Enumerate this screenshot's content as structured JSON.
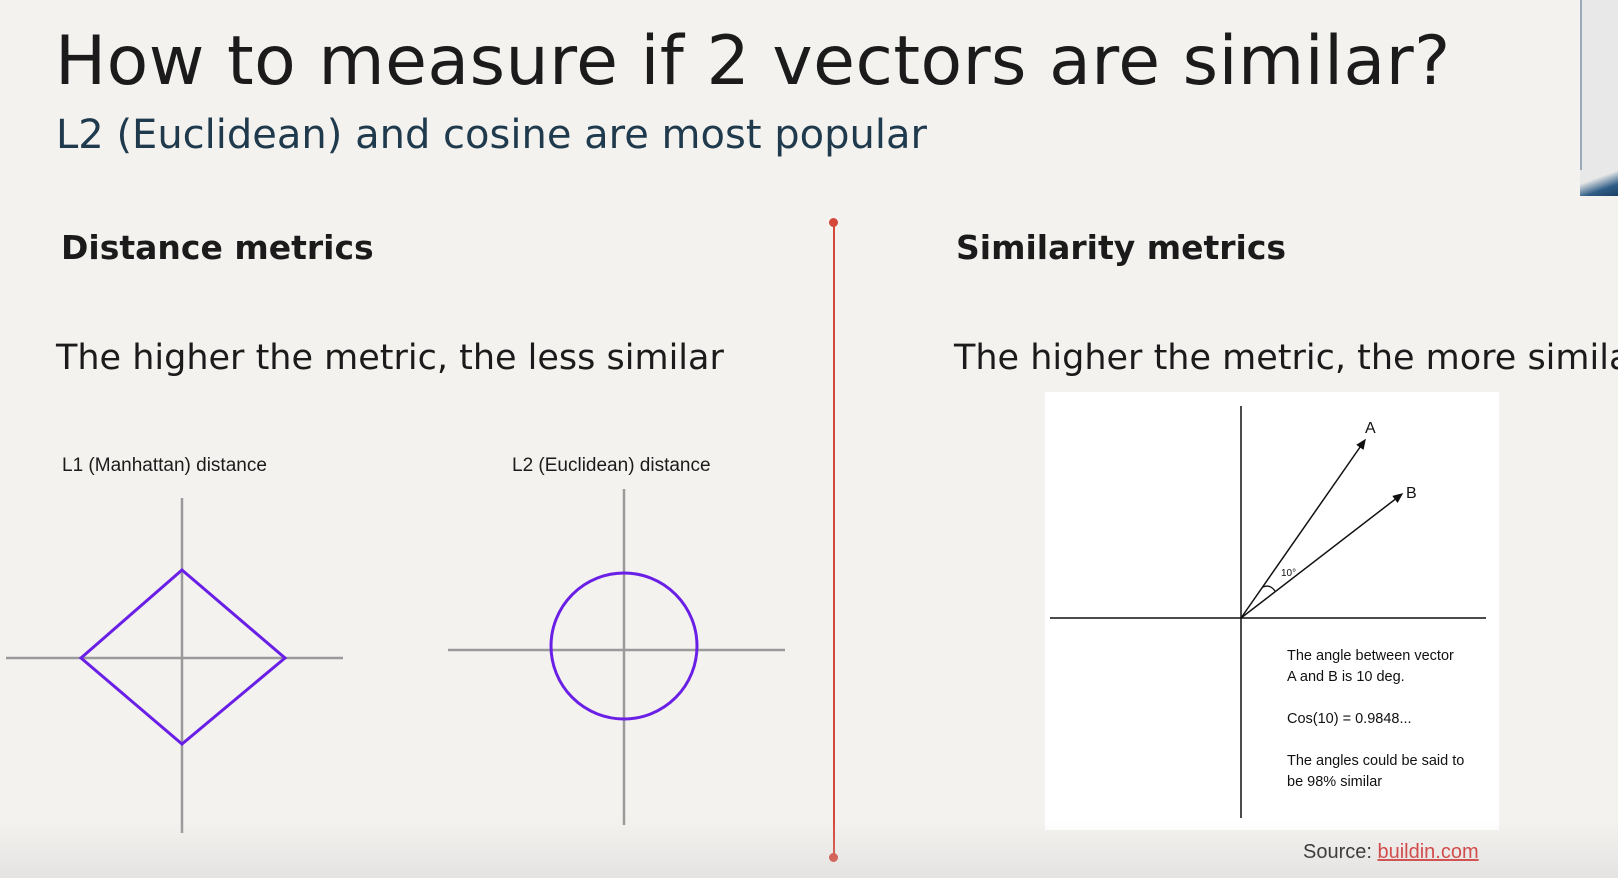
{
  "slide": {
    "title": "How to measure if 2 vectors are similar?",
    "subtitle": "L2 (Euclidean) and cosine are most popular"
  },
  "left": {
    "heading": "Distance metrics",
    "description": "The higher the metric, the less similar",
    "l1_caption": "L1 (Manhattan) distance",
    "l2_caption": "L2 (Euclidean) distance"
  },
  "right": {
    "heading": "Similarity metrics",
    "description": "The higher the metric, the more similar",
    "figure": {
      "label_a": "A",
      "label_b": "B",
      "angle_label": "10°",
      "text_line1": "The angle between vector",
      "text_line2": "A and B is 10 deg.",
      "text_line3": "Cos(10)  = 0.9848...",
      "text_line4": "The angles could be said to",
      "text_line5": "be 98% similar"
    },
    "source_label": "Source: ",
    "source_link": "buildin.com"
  },
  "colors": {
    "accent_purple": "#6a1fe6",
    "axis_gray": "#9a9a9a",
    "divider_red": "#d6473b",
    "link_red": "#d32f2f",
    "background": "#f4f2ef"
  }
}
